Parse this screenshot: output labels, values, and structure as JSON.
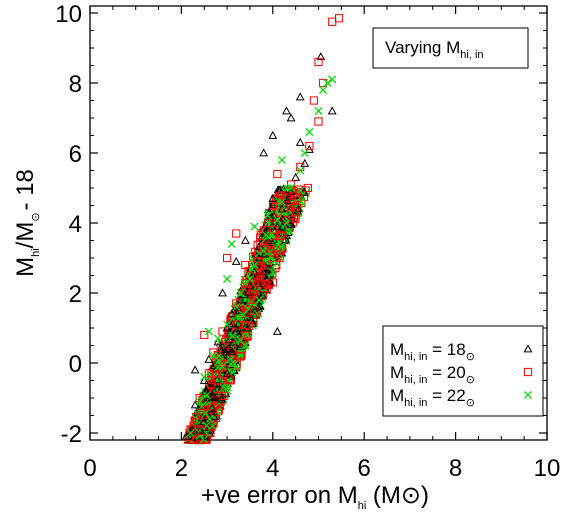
{
  "chart_data": {
    "type": "scatter",
    "xlabel": {
      "main": "+ve error on M",
      "sub": "hi",
      "unit_open": " (M",
      "unit_sym": "⊙",
      "unit_close": ")"
    },
    "ylabel": {
      "main": "M",
      "sub": "hi",
      "mid": "/M",
      "sym": "⊙",
      "tail": "- 18"
    },
    "xlim": [
      0,
      10
    ],
    "ylim": [
      -2.2,
      10.2
    ],
    "x_ticks": [
      0,
      2,
      4,
      6,
      8,
      10
    ],
    "y_ticks": [
      -2,
      0,
      2,
      4,
      6,
      8,
      10
    ],
    "grid": false,
    "annotation": {
      "text": "Varying M",
      "sub": "hi, in"
    },
    "legend_position": "bottom-right",
    "series": [
      {
        "name": {
          "main": "M",
          "sub": "hi, in",
          "eq": " = 18",
          "sym": "⊙"
        },
        "marker": "triangle",
        "color": "#000000",
        "points": [
          [
            2.1,
            -2.1
          ],
          [
            2.3,
            -1.2
          ],
          [
            2.5,
            -0.5
          ],
          [
            2.6,
            0.1
          ],
          [
            2.8,
            0.6
          ],
          [
            3.0,
            1.0
          ],
          [
            3.1,
            1.4
          ],
          [
            3.3,
            1.8
          ],
          [
            3.5,
            2.2
          ],
          [
            3.6,
            2.6
          ],
          [
            3.7,
            3.0
          ],
          [
            3.9,
            3.5
          ],
          [
            4.1,
            3.9
          ],
          [
            4.2,
            4.4
          ],
          [
            4.4,
            4.9
          ],
          [
            4.5,
            5.3
          ],
          [
            4.7,
            5.7
          ],
          [
            3.8,
            6.0
          ],
          [
            4.0,
            6.5
          ],
          [
            4.4,
            7.0
          ],
          [
            4.3,
            7.2
          ],
          [
            4.6,
            7.6
          ],
          [
            5.05,
            8.75
          ],
          [
            5.3,
            7.2
          ],
          [
            4.6,
            6.3
          ],
          [
            3.2,
            2.9
          ],
          [
            4.1,
            0.9
          ],
          [
            2.3,
            -0.2
          ],
          [
            3.45,
            1.0
          ],
          [
            2.9,
            2.0
          ],
          [
            3.0,
            -0.3
          ],
          [
            4.0,
            4.7
          ],
          [
            4.8,
            6.1
          ],
          [
            3.4,
            3.5
          ]
        ]
      },
      {
        "name": {
          "main": "M",
          "sub": "hi, in",
          "eq": " = 20",
          "sym": "⊙"
        },
        "marker": "square",
        "color": "#ff0000",
        "points": [
          [
            2.2,
            -1.9
          ],
          [
            2.4,
            -1.0
          ],
          [
            2.6,
            -0.3
          ],
          [
            2.7,
            0.3
          ],
          [
            2.9,
            0.9
          ],
          [
            3.1,
            1.3
          ],
          [
            3.2,
            1.7
          ],
          [
            3.4,
            2.1
          ],
          [
            3.5,
            2.5
          ],
          [
            3.7,
            2.9
          ],
          [
            3.8,
            3.3
          ],
          [
            4.0,
            3.8
          ],
          [
            4.1,
            4.3
          ],
          [
            4.3,
            4.7
          ],
          [
            4.4,
            5.1
          ],
          [
            4.6,
            5.6
          ],
          [
            4.8,
            6.2
          ],
          [
            5.0,
            6.9
          ],
          [
            4.9,
            7.5
          ],
          [
            5.1,
            8.0
          ],
          [
            5.0,
            8.6
          ],
          [
            5.3,
            9.75
          ],
          [
            5.45,
            9.85
          ],
          [
            3.0,
            3.0
          ],
          [
            3.6,
            1.5
          ],
          [
            2.8,
            -0.5
          ],
          [
            3.3,
            0.2
          ],
          [
            4.0,
            2.3
          ],
          [
            3.9,
            4.0
          ],
          [
            3.2,
            3.7
          ],
          [
            4.5,
            4.3
          ],
          [
            2.5,
            0.8
          ],
          [
            3.4,
            2.8
          ],
          [
            4.1,
            5.4
          ]
        ]
      },
      {
        "name": {
          "main": "M",
          "sub": "hi, in",
          "eq": " = 22",
          "sym": "⊙"
        },
        "marker": "cross",
        "color": "#00dd00",
        "points": [
          [
            2.2,
            -2.0
          ],
          [
            2.4,
            -1.1
          ],
          [
            2.5,
            -0.4
          ],
          [
            2.7,
            0.2
          ],
          [
            2.8,
            0.7
          ],
          [
            3.0,
            1.1
          ],
          [
            3.2,
            1.6
          ],
          [
            3.3,
            2.0
          ],
          [
            3.5,
            2.4
          ],
          [
            3.6,
            2.8
          ],
          [
            3.8,
            3.2
          ],
          [
            3.9,
            3.6
          ],
          [
            4.1,
            4.1
          ],
          [
            4.2,
            4.6
          ],
          [
            4.4,
            5.0
          ],
          [
            4.6,
            5.5
          ],
          [
            4.7,
            6.0
          ],
          [
            4.8,
            6.6
          ],
          [
            5.0,
            7.2
          ],
          [
            5.1,
            7.8
          ],
          [
            5.2,
            8.0
          ],
          [
            5.3,
            8.1
          ],
          [
            3.1,
            3.4
          ],
          [
            3.7,
            1.8
          ],
          [
            2.9,
            -0.1
          ],
          [
            3.4,
            0.5
          ],
          [
            4.0,
            2.6
          ],
          [
            3.6,
            3.9
          ],
          [
            4.3,
            4.0
          ],
          [
            3.0,
            2.4
          ],
          [
            2.6,
            0.9
          ],
          [
            4.2,
            5.8
          ]
        ]
      }
    ]
  }
}
